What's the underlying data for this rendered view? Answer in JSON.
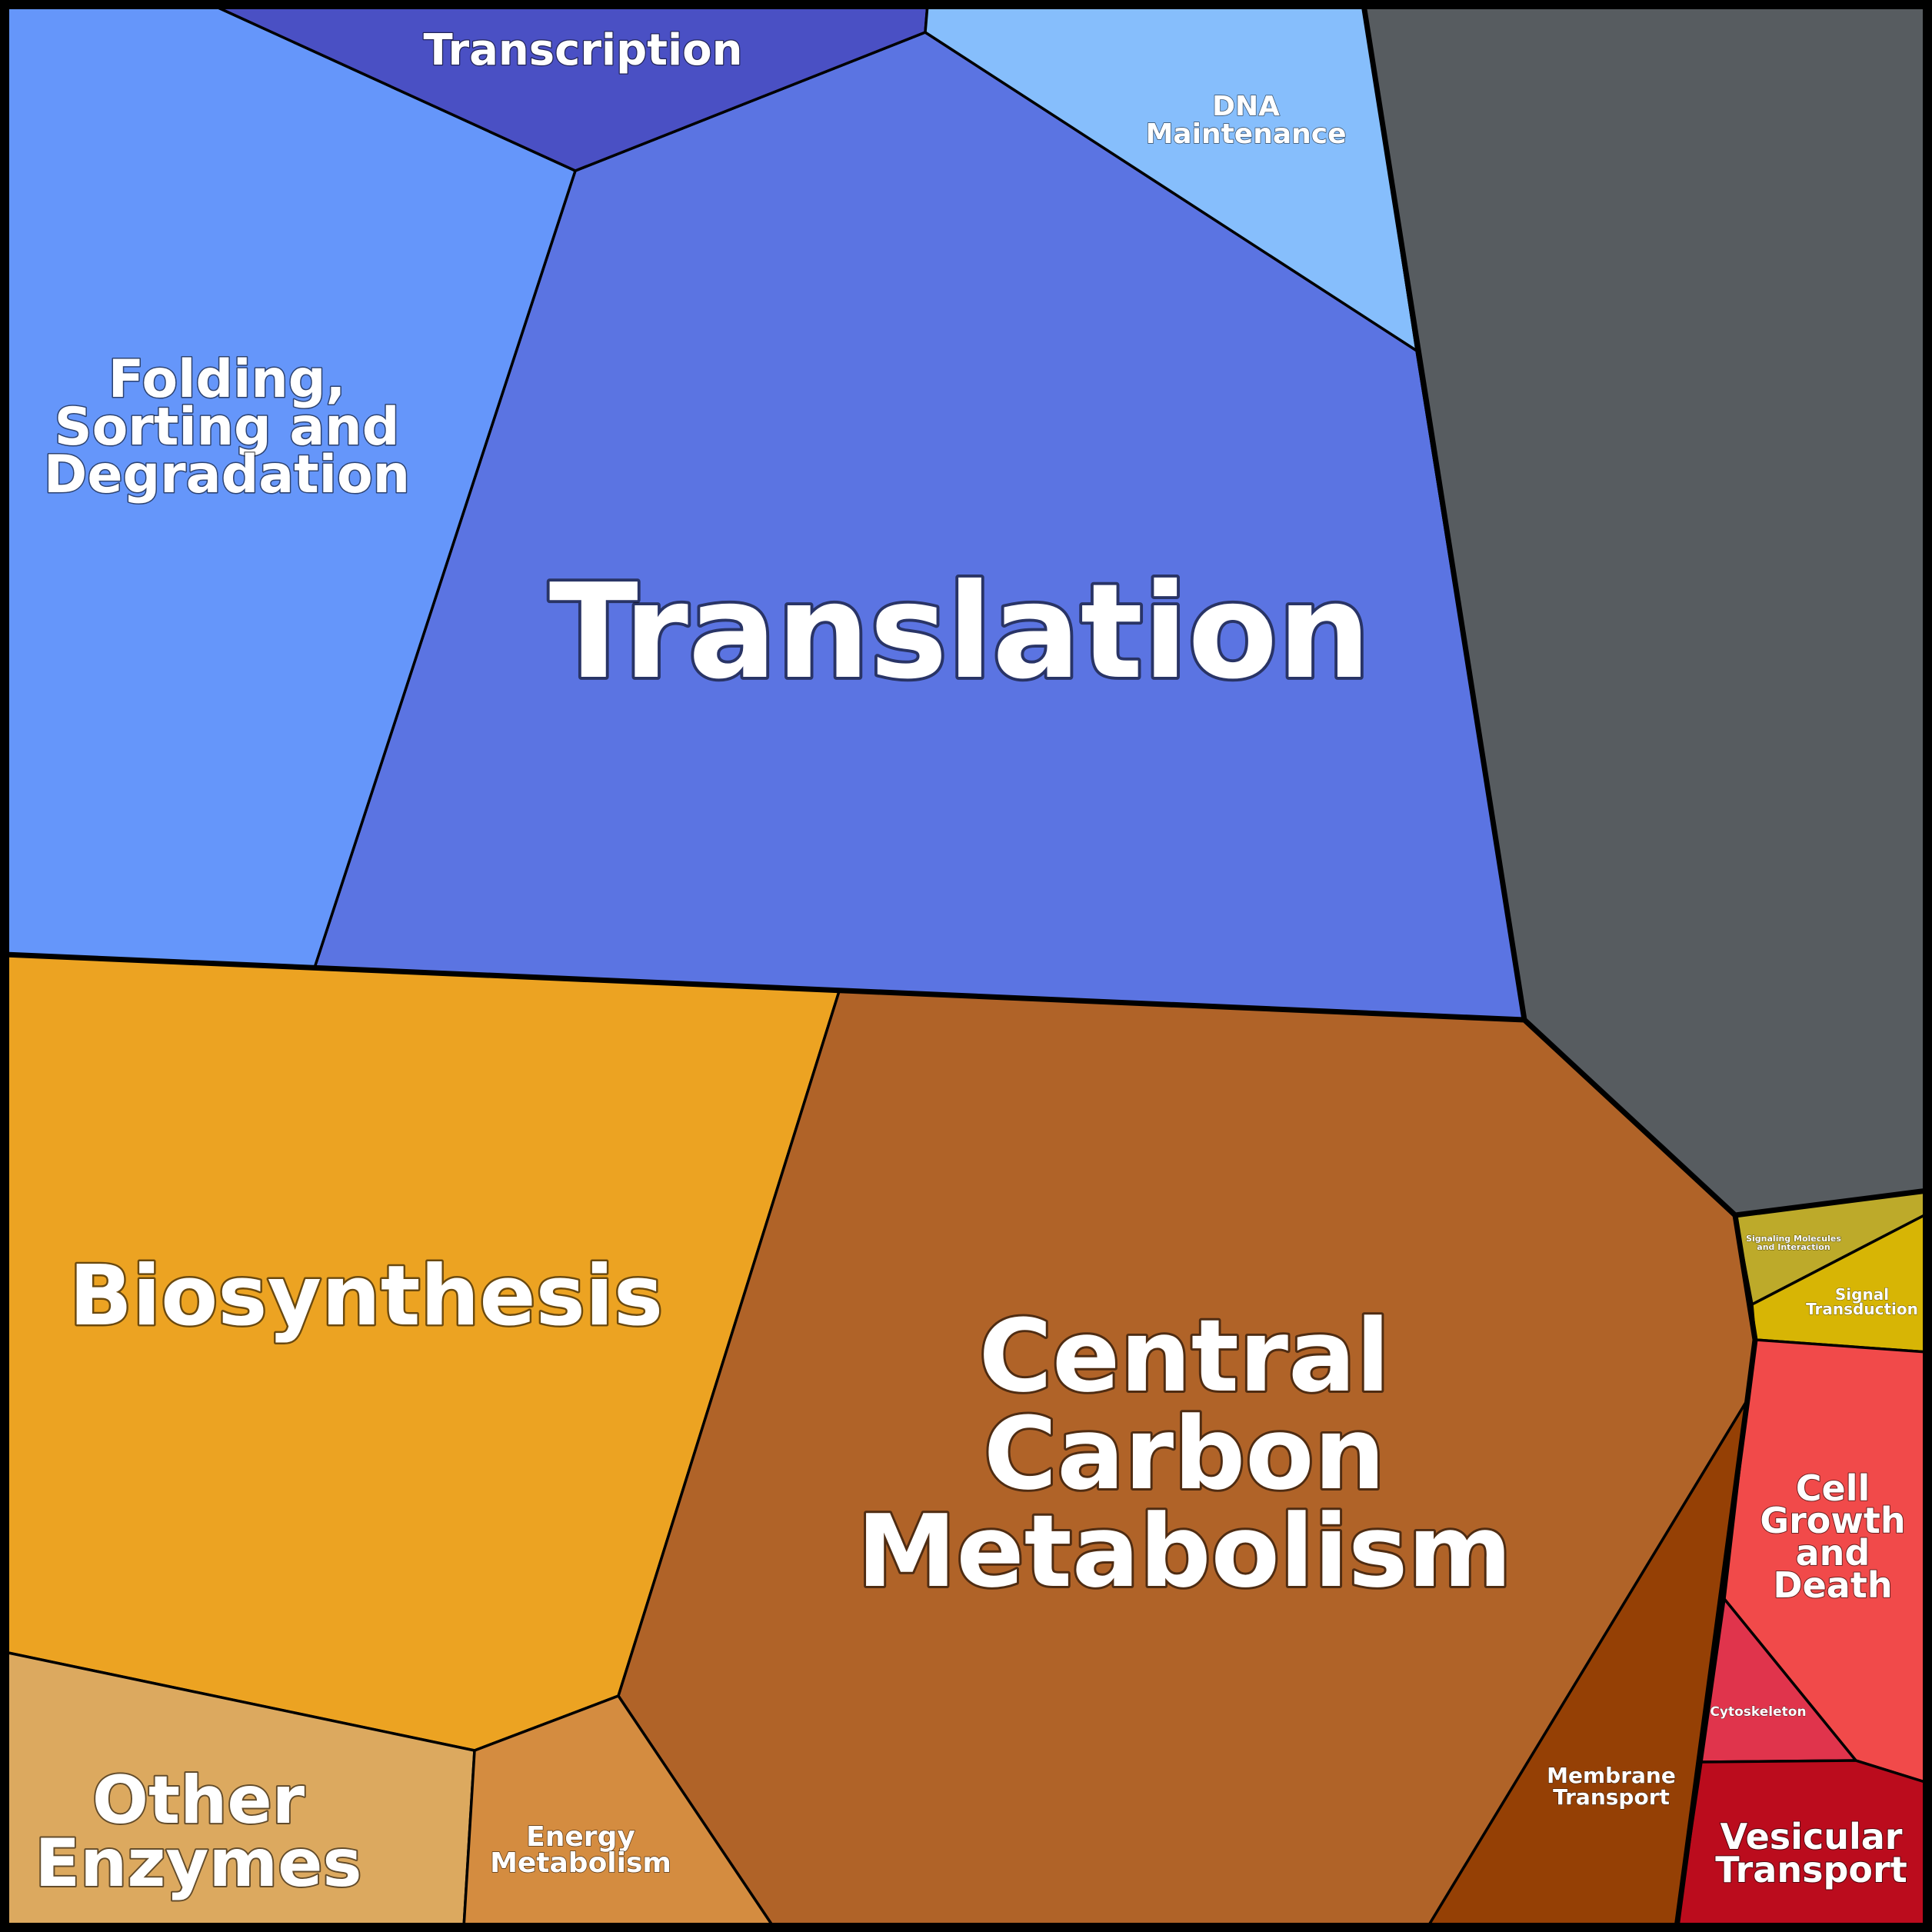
{
  "chart_data": {
    "type": "voronoi-treemap",
    "title": "",
    "cells": [
      {
        "id": "translation",
        "label": "Translation",
        "color": "#5b74e2",
        "group": "genetic-information-processing"
      },
      {
        "id": "folding",
        "label": "Folding, Sorting and Degradation",
        "color": "#6596fa",
        "group": "genetic-information-processing"
      },
      {
        "id": "transcription",
        "label": "Transcription",
        "color": "#4a50c4",
        "group": "genetic-information-processing"
      },
      {
        "id": "dna-maintenance",
        "label": "DNA Maintenance",
        "color": "#86befc",
        "group": "genetic-information-processing"
      },
      {
        "id": "unlabeled-gray",
        "label": "",
        "color": "#575c60",
        "group": "unlabeled"
      },
      {
        "id": "biosynthesis",
        "label": "Biosynthesis",
        "color": "#eca322",
        "group": "metabolism"
      },
      {
        "id": "central-carbon",
        "label": "Central Carbon Metabolism",
        "color": "#b06328",
        "group": "metabolism"
      },
      {
        "id": "other-enzymes",
        "label": "Other Enzymes",
        "color": "#dca95f",
        "group": "metabolism"
      },
      {
        "id": "energy-metabolism",
        "label": "Energy Metabolism",
        "color": "#d48c40",
        "group": "metabolism"
      },
      {
        "id": "membrane-transport",
        "label": "Membrane Transport",
        "color": "#954005",
        "group": "environmental-information-processing"
      },
      {
        "id": "signaling-molecules",
        "label": "Signaling Molecules and Interaction",
        "color": "#bdaa2a",
        "group": "environmental-information-processing"
      },
      {
        "id": "signal-transduction",
        "label": "Signal Transduction",
        "color": "#d7b505",
        "group": "environmental-information-processing"
      },
      {
        "id": "cell-growth",
        "label": "Cell Growth and Death",
        "color": "#f14a4a",
        "group": "cellular-processes"
      },
      {
        "id": "cytoskeleton",
        "label": "Cytoskeleton",
        "color": "#e0344c",
        "group": "cellular-processes"
      },
      {
        "id": "vesicular-transport",
        "label": "Vesicular Transport",
        "color": "#bb0c1d",
        "group": "cellular-processes"
      }
    ]
  }
}
